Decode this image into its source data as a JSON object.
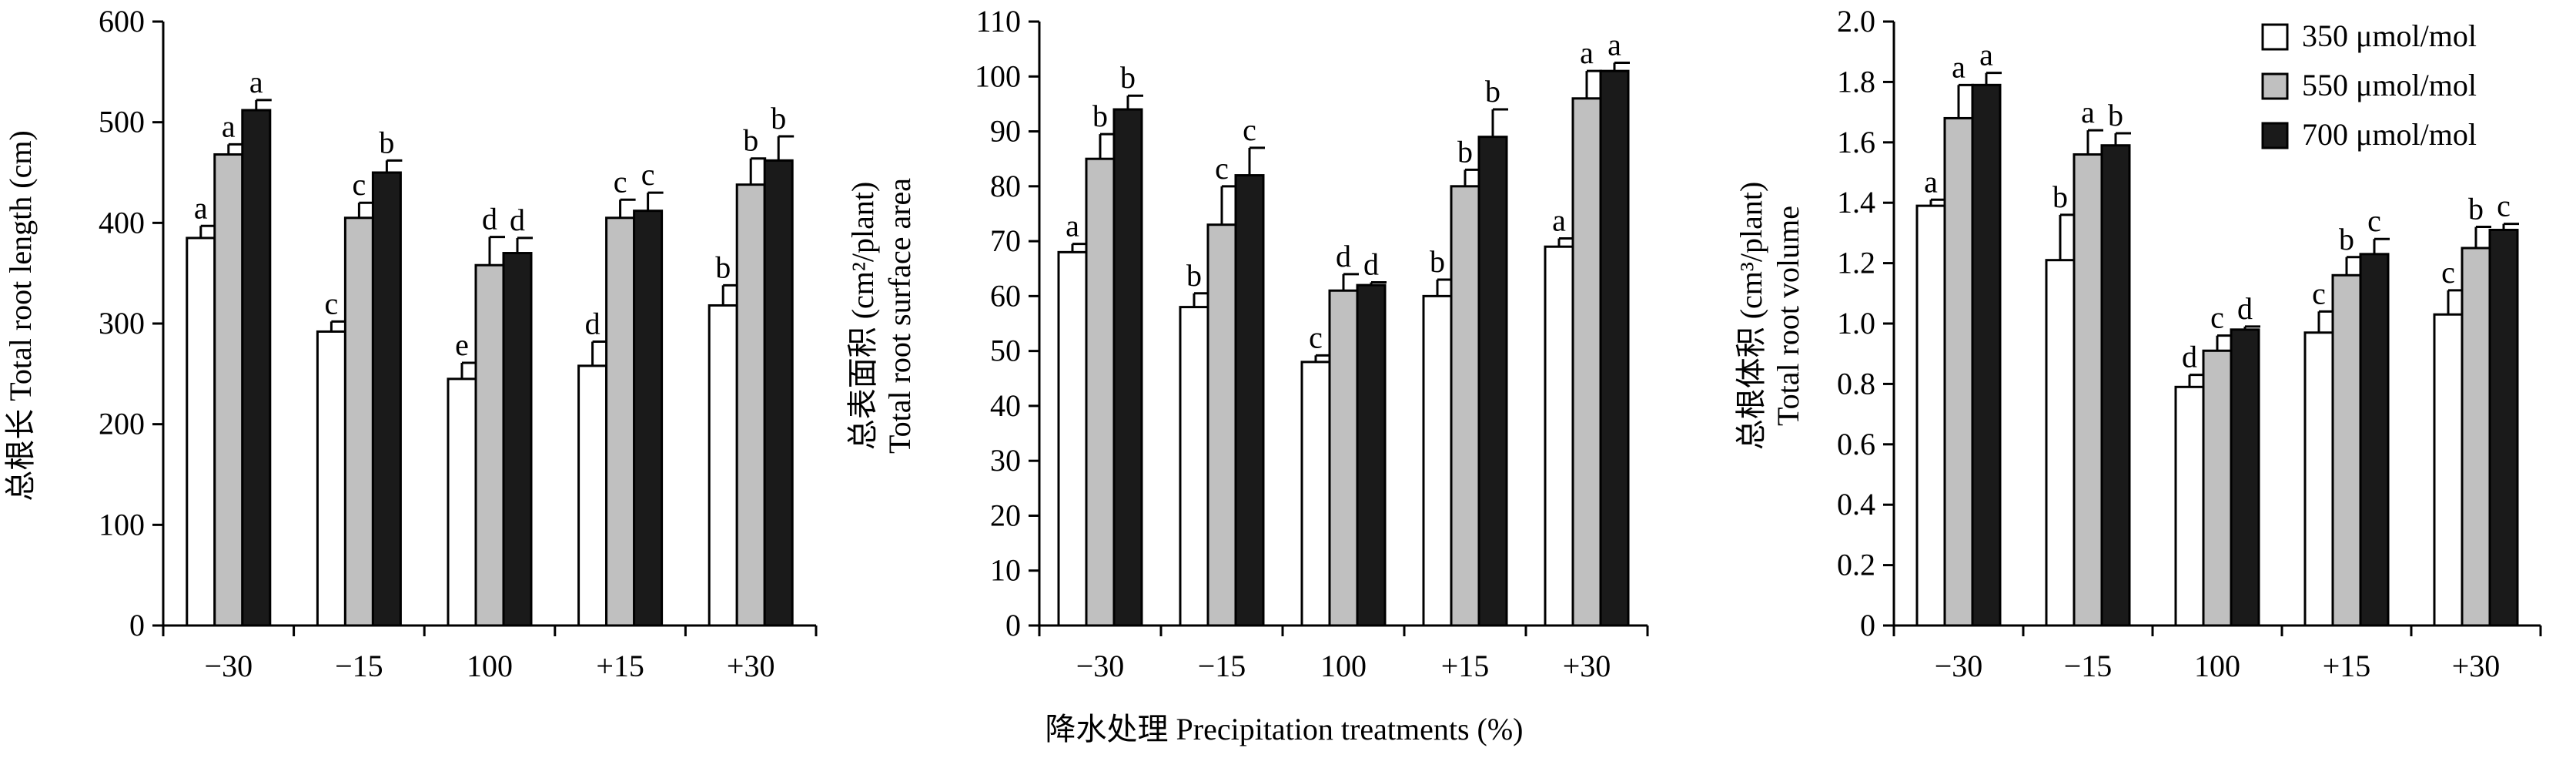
{
  "figure": {
    "xlabel": "降水处理 Precipitation treatments (%)"
  },
  "legend": {
    "entries": [
      {
        "label": "350 μmol/mol",
        "color": "#ffffff"
      },
      {
        "label": "550 μmol/mol",
        "color": "#c0c0c0"
      },
      {
        "label": "700 μmol/mol",
        "color": "#1a1a1a"
      }
    ]
  },
  "chart_data": [
    {
      "type": "bar",
      "ylabel": "总根长 Total root length (cm)",
      "categories": [
        "−30",
        "−15",
        "100",
        "+15",
        "+30"
      ],
      "ylim": [
        0,
        600
      ],
      "yticks": [
        "0",
        "100",
        "200",
        "300",
        "400",
        "500",
        "600"
      ],
      "series": [
        {
          "name": "350 μmol/mol",
          "values": [
            385,
            292,
            245,
            258,
            318
          ],
          "errors": [
            12,
            10,
            16,
            24,
            20
          ],
          "letters": [
            "a",
            "c",
            "e",
            "d",
            "b"
          ]
        },
        {
          "name": "550 μmol/mol",
          "values": [
            468,
            405,
            358,
            405,
            438
          ],
          "errors": [
            10,
            15,
            28,
            18,
            26
          ],
          "letters": [
            "a",
            "c",
            "d",
            "c",
            "b"
          ]
        },
        {
          "name": "700 μmol/mol",
          "values": [
            512,
            450,
            370,
            412,
            462
          ],
          "errors": [
            10,
            12,
            15,
            18,
            24
          ],
          "letters": [
            "a",
            "b",
            "d",
            "c",
            "b"
          ]
        }
      ]
    },
    {
      "type": "bar",
      "ylabel": "总表面积 (cm²/plant) Total root surface area",
      "ylabel_line1": "总表面积 (cm²/plant)",
      "ylabel_line2": "Total root surface area",
      "categories": [
        "−30",
        "−15",
        "100",
        "+15",
        "+30"
      ],
      "ylim": [
        0,
        110
      ],
      "yticks": [
        "0",
        "10",
        "20",
        "30",
        "40",
        "50",
        "60",
        "70",
        "80",
        "90",
        "100",
        "110"
      ],
      "series": [
        {
          "name": "350 μmol/mol",
          "values": [
            68,
            58,
            48,
            60,
            69
          ],
          "errors": [
            1.5,
            2.5,
            1.2,
            3,
            1.5
          ],
          "letters": [
            "a",
            "b",
            "c",
            "b",
            "a"
          ]
        },
        {
          "name": "550 μmol/mol",
          "values": [
            85,
            73,
            61,
            80,
            96
          ],
          "errors": [
            4.5,
            7,
            3,
            3,
            5
          ],
          "letters": [
            "b",
            "c",
            "d",
            "b",
            "a"
          ]
        },
        {
          "name": "700 μmol/mol",
          "values": [
            94,
            82,
            62,
            89,
            101
          ],
          "errors": [
            2.5,
            5,
            0.5,
            5,
            1.5
          ],
          "letters": [
            "b",
            "c",
            "d",
            "b",
            "a"
          ]
        }
      ]
    },
    {
      "type": "bar",
      "ylabel": "总根体积 (cm³/plant) Total root volume",
      "ylabel_line1": "总根体积 (cm³/plant)",
      "ylabel_line2": "Total root volume",
      "categories": [
        "−30",
        "−15",
        "100",
        "+15",
        "+30"
      ],
      "ylim": [
        0,
        2.0
      ],
      "yticks": [
        "0",
        "0.2",
        "0.4",
        "0.6",
        "0.8",
        "1.0",
        "1.2",
        "1.4",
        "1.6",
        "1.8",
        "2.0"
      ],
      "series": [
        {
          "name": "350 μmol/mol",
          "values": [
            1.39,
            1.21,
            0.79,
            0.97,
            1.03
          ],
          "errors": [
            0.02,
            0.15,
            0.04,
            0.07,
            0.08
          ],
          "letters": [
            "a",
            "b",
            "d",
            "c",
            "c"
          ]
        },
        {
          "name": "550 μmol/mol",
          "values": [
            1.68,
            1.56,
            0.91,
            1.16,
            1.25
          ],
          "errors": [
            0.11,
            0.08,
            0.05,
            0.06,
            0.07
          ],
          "letters": [
            "a",
            "a",
            "c",
            "b",
            "b"
          ]
        },
        {
          "name": "700 μmol/mol",
          "values": [
            1.79,
            1.59,
            0.98,
            1.23,
            1.31
          ],
          "errors": [
            0.04,
            0.04,
            0.01,
            0.05,
            0.02
          ],
          "letters": [
            "a",
            "b",
            "d",
            "c",
            "c"
          ]
        }
      ]
    }
  ]
}
